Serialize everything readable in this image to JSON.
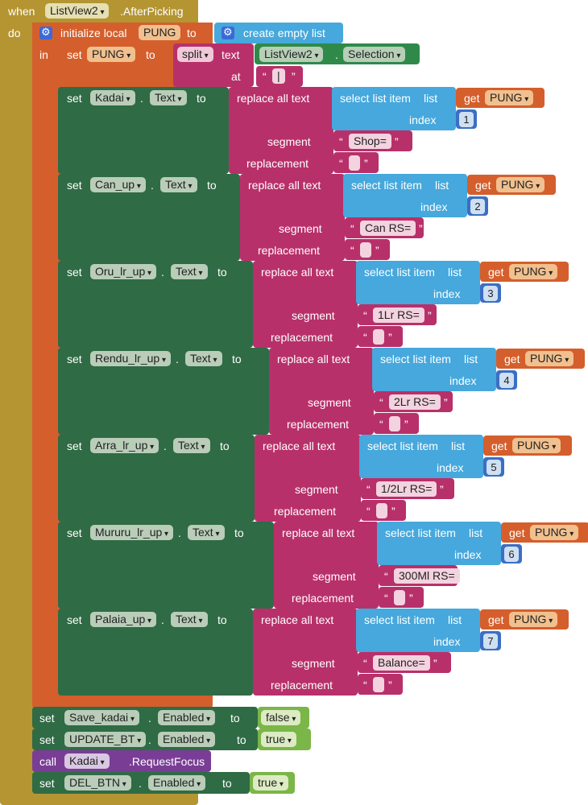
{
  "event": {
    "when": "when",
    "component": "ListView2",
    "event_name": ".AfterPicking",
    "do": "do"
  },
  "local_init": {
    "label": "initialize local",
    "var": "PUNG",
    "to": "to",
    "value": "create empty list",
    "in": "in"
  },
  "split_set": {
    "set": "set",
    "var": "PUNG",
    "to": "to",
    "split": "split",
    "text": "text",
    "source_component": "ListView2",
    "dot": ".",
    "source_property": "Selection",
    "at": "at",
    "at_value": "|"
  },
  "keywords": {
    "set": "set",
    "dot": ".",
    "to": "to",
    "replace_all_text": "replace all text",
    "select_list_item": "select list item",
    "list": "list",
    "index": "index",
    "segment": "segment",
    "replacement": "replacement",
    "get": "get",
    "quote_open": "“",
    "quote_close": "”"
  },
  "replace_blocks": [
    {
      "component": "Kadai",
      "property": "Text",
      "var": "PUNG",
      "index": "1",
      "segment": "Shop="
    },
    {
      "component": "Can_up",
      "property": "Text",
      "var": "PUNG",
      "index": "2",
      "segment": "Can RS="
    },
    {
      "component": "Oru_lr_up",
      "property": "Text",
      "var": "PUNG",
      "index": "3",
      "segment": "1Lr RS="
    },
    {
      "component": "Rendu_lr_up",
      "property": "Text",
      "var": "PUNG",
      "index": "4",
      "segment": "2Lr RS="
    },
    {
      "component": "Arra_lr_up",
      "property": "Text",
      "var": "PUNG",
      "index": "5",
      "segment": "1/2Lr RS="
    },
    {
      "component": "Mururu_lr_up",
      "property": "Text",
      "var": "PUNG",
      "index": "6",
      "segment": "300Ml RS="
    },
    {
      "component": "Palaia_up",
      "property": "Text",
      "var": "PUNG",
      "index": "7",
      "segment": "Balance="
    }
  ],
  "bottom_blocks": [
    {
      "kind": "set",
      "keyword": "set",
      "component": "Save_kadai",
      "property": "Enabled",
      "to": "to",
      "value": "false"
    },
    {
      "kind": "set",
      "keyword": "set",
      "component": "UPDATE_BT",
      "property": "Enabled",
      "to": "to",
      "value": "true"
    },
    {
      "kind": "call",
      "keyword": "call",
      "component": "Kadai",
      "method": ".RequestFocus"
    },
    {
      "kind": "set",
      "keyword": "set",
      "component": "DEL_BTN",
      "property": "Enabled",
      "to": "to",
      "value": "true"
    }
  ],
  "colors": {
    "event": "#b49532",
    "local": "#d45f2c",
    "set_green": "#2f6b45",
    "text_pink": "#b8306a",
    "list_blue": "#46a8dc",
    "get_orange": "#d45f2c",
    "number_blue": "#3b6fc4",
    "logic_green": "#7ab648",
    "call_purple": "#7a3d96"
  }
}
